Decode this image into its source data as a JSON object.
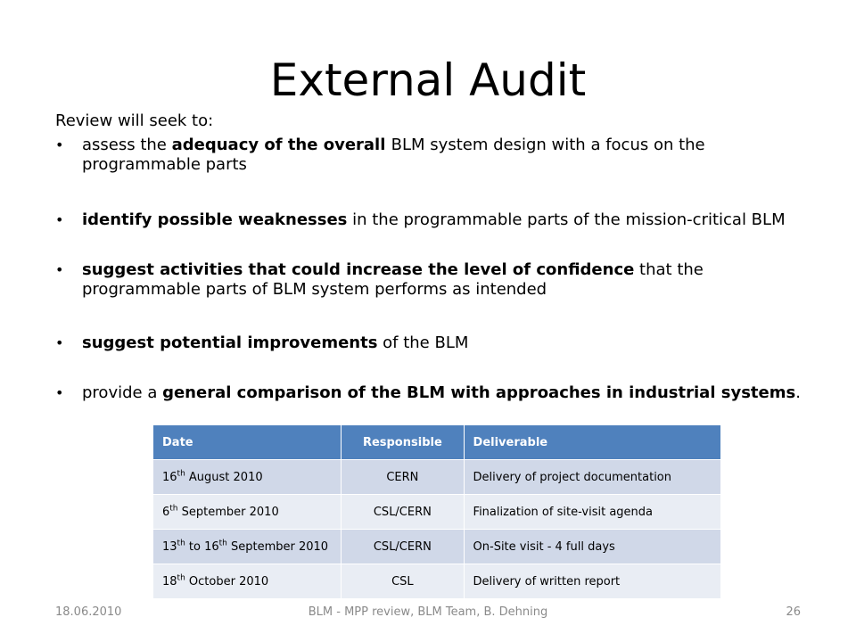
{
  "slide": {
    "title": "External Audit",
    "intro": "Review will seek to:",
    "bullet_symbol": "•",
    "bullets": [
      {
        "pre": "assess the ",
        "bold": "adequacy of the overall ",
        "post": "BLM system design with a focus on the programmable parts"
      },
      {
        "pre": "",
        "bold": "identify possible weaknesses",
        "post": " in the programmable parts of the mission-critical BLM"
      },
      {
        "pre": "",
        "bold": "suggest activities that could increase the level of confidence",
        "post": " that the programmable parts of BLM system performs as intended"
      },
      {
        "pre": "",
        "bold": "suggest potential improvements",
        "post": " of the BLM"
      },
      {
        "pre": "provide a ",
        "bold": "general comparison of the BLM with approaches in industrial systems",
        "post": "."
      }
    ]
  },
  "table": {
    "headers": [
      "Date",
      "Responsible",
      "Deliverable"
    ],
    "rows": [
      {
        "date_pre": "16",
        "date_sup": "th",
        "date_mid": " August 2010",
        "date_sup2": "",
        "date_post": "",
        "responsible": "CERN",
        "deliverable": "Delivery of project documentation"
      },
      {
        "date_pre": "6",
        "date_sup": "th",
        "date_mid": " September 2010",
        "date_sup2": "",
        "date_post": "",
        "responsible": "CSL/CERN",
        "deliverable": "Finalization of site-visit agenda"
      },
      {
        "date_pre": "13",
        "date_sup": "th",
        "date_mid": " to 16",
        "date_sup2": "th",
        "date_post": " September 2010",
        "responsible": "CSL/CERN",
        "deliverable": "On-Site visit - 4 full days"
      },
      {
        "date_pre": "18",
        "date_sup": "th",
        "date_mid": " October 2010",
        "date_sup2": "",
        "date_post": "",
        "responsible": "CSL",
        "deliverable": "Delivery of written report"
      }
    ],
    "colors": {
      "header_bg": "#4f81bd",
      "row_odd_bg": "#d0d8e8",
      "row_even_bg": "#e9edf4"
    }
  },
  "footer": {
    "date": "18.06.2010",
    "center": "BLM - MPP review, BLM Team, B. Dehning",
    "page": "26"
  }
}
